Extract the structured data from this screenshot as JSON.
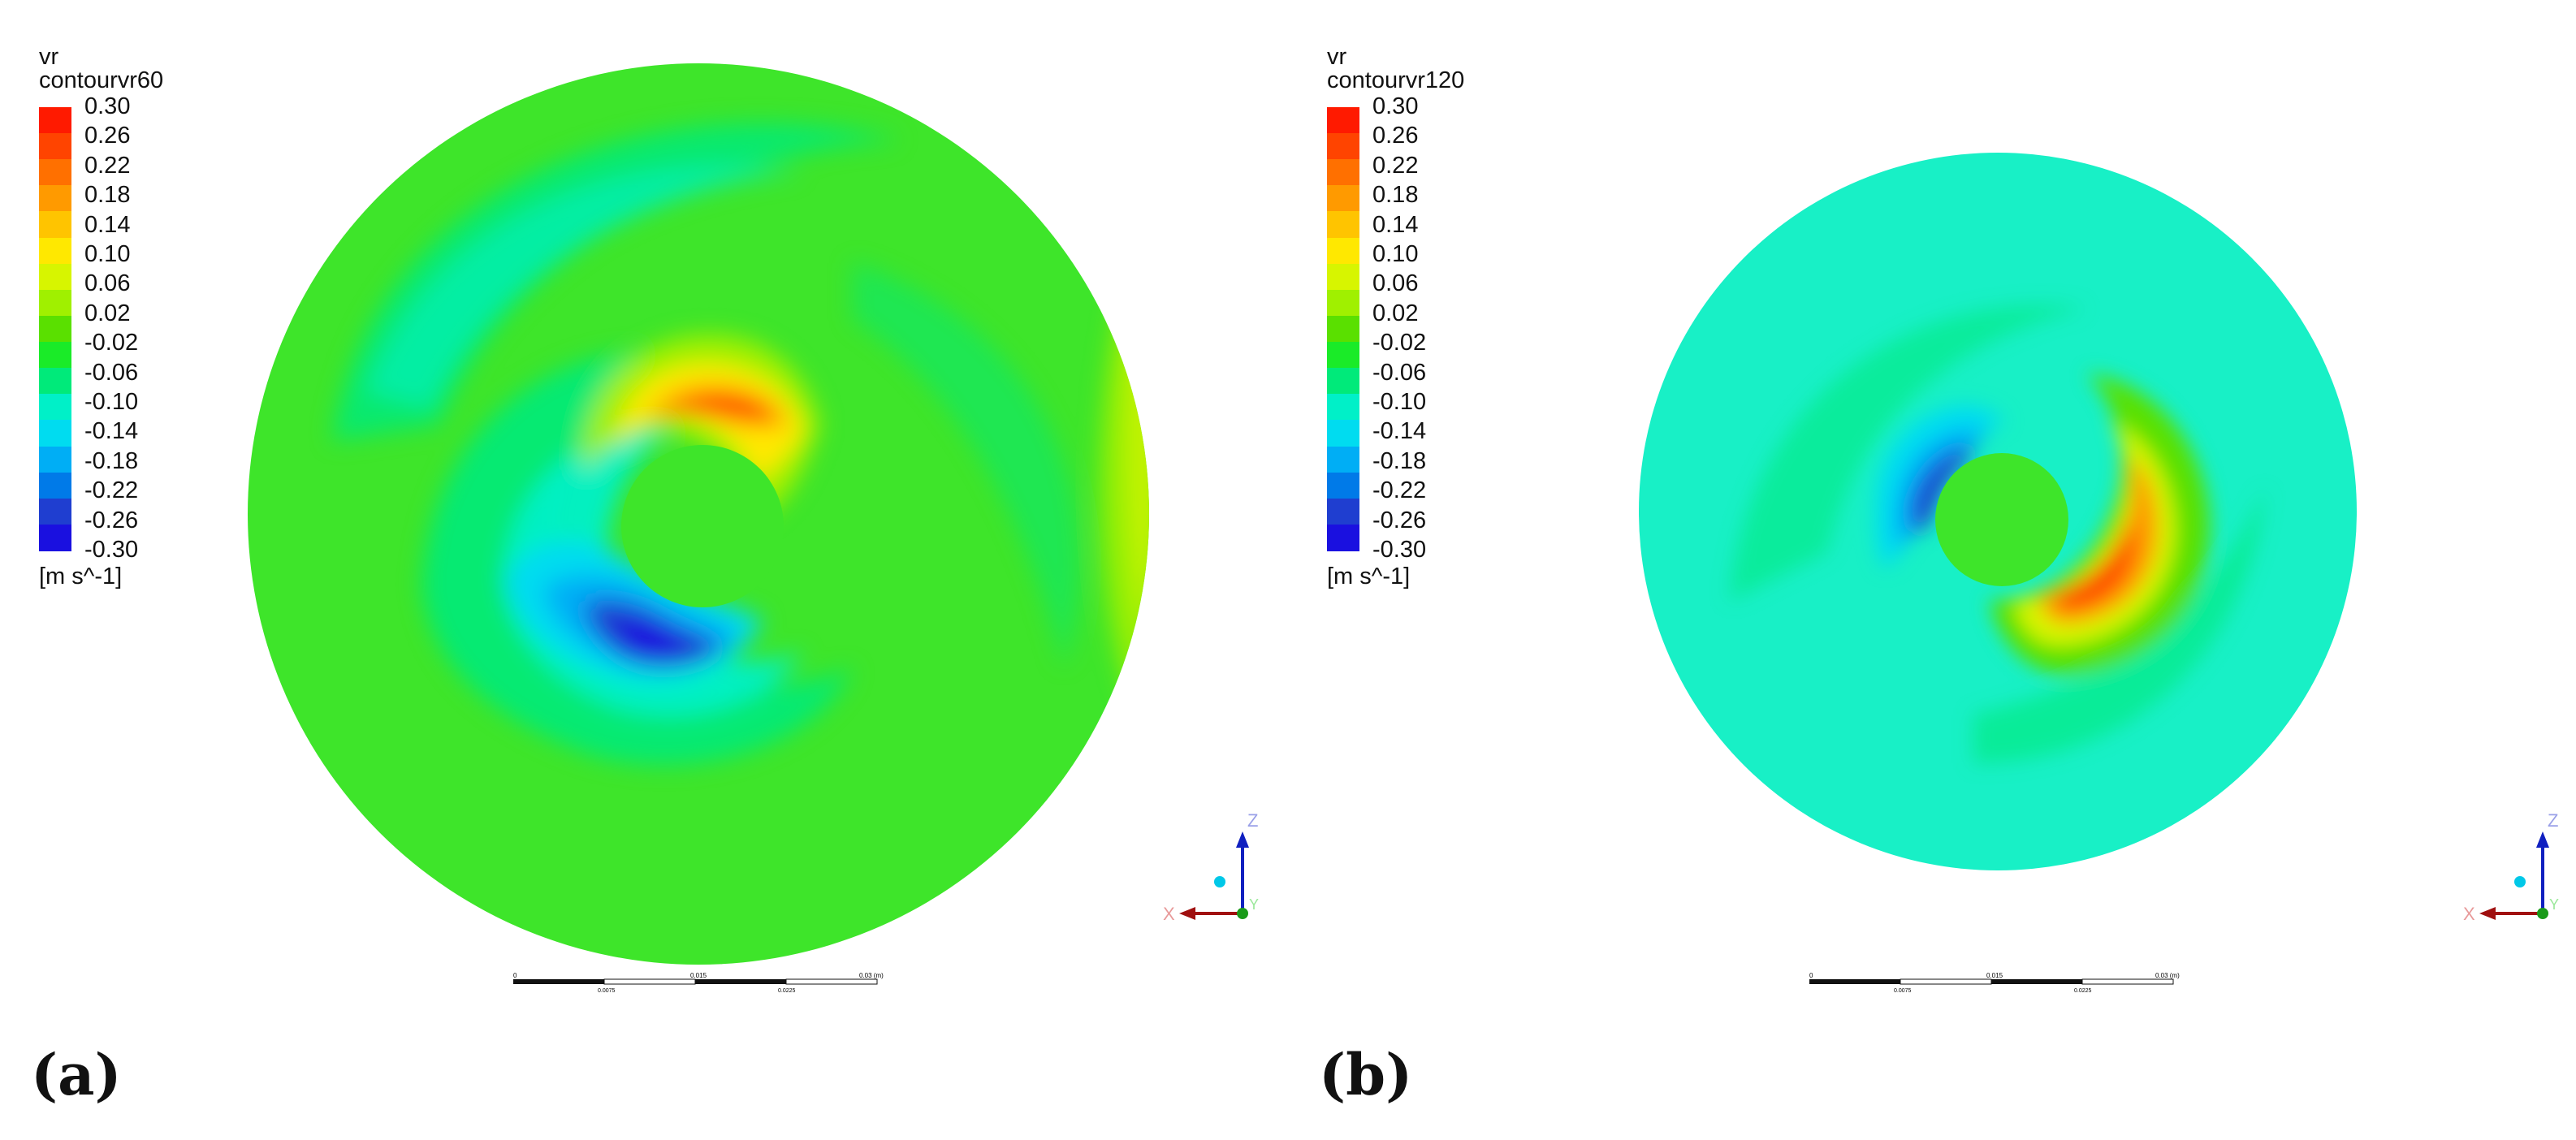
{
  "legend_ticks": [
    "0.30",
    "0.26",
    "0.22",
    "0.18",
    "0.14",
    "0.10",
    "0.06",
    "0.02",
    "-0.02",
    "-0.06",
    "-0.10",
    "-0.14",
    "-0.18",
    "-0.22",
    "-0.26",
    "-0.30"
  ],
  "legend_colors": [
    "#ff1a00",
    "#ff4400",
    "#ff7000",
    "#ff9a00",
    "#ffc400",
    "#ffe800",
    "#d7f500",
    "#a0f000",
    "#5ae000",
    "#1aeb28",
    "#00ea7a",
    "#00f0c8",
    "#00dcf0",
    "#00aef5",
    "#007ae8",
    "#1f3ed0",
    "#1a10e0"
  ],
  "units": "[m s^-1]",
  "panels": [
    {
      "label": "(a)",
      "variable": "vr",
      "contour_name": "contourvr60",
      "domain_fill": "#3ee52a"
    },
    {
      "label": "(b)",
      "variable": "vr",
      "contour_name": "contourvr120",
      "domain_fill": "#18f0c6"
    }
  ],
  "scale_bar": {
    "labels": [
      "0",
      "0.015",
      "0.03 (m)"
    ],
    "sublabels": [
      "0.0075",
      "0.0225"
    ]
  },
  "axis_triad": {
    "z": "Z",
    "x": "X",
    "y": "Y"
  }
}
